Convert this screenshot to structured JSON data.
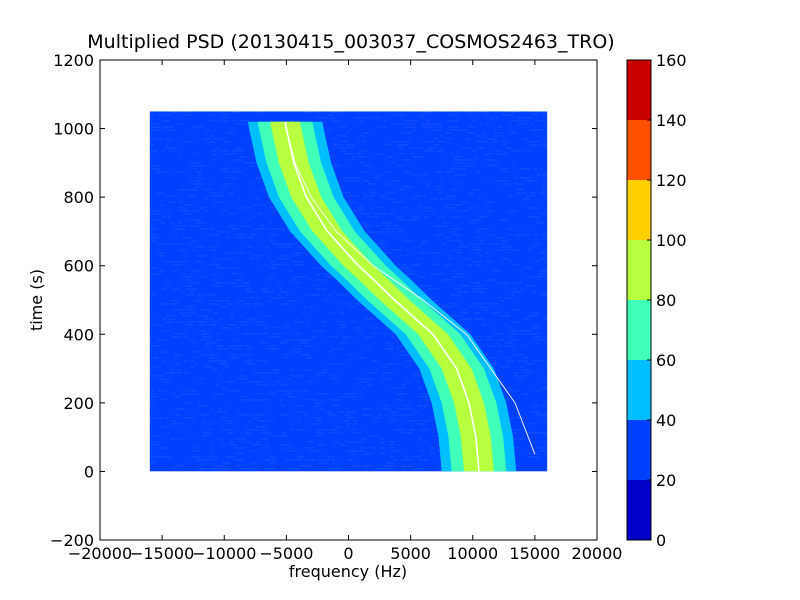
{
  "chart_data": {
    "type": "heatmap",
    "title": "Multiplied PSD (20130415_003037_COSMOS2463_TRO)",
    "xlabel": "frequency (Hz)",
    "ylabel": "time (s)",
    "xlim": [
      -20000,
      20000
    ],
    "ylim": [
      -200,
      1200
    ],
    "x_ticks": [
      "−20000",
      "−15000",
      "−10000",
      "−5000",
      "0",
      "5000",
      "10000",
      "15000",
      "20000"
    ],
    "y_ticks": [
      "−200",
      "0",
      "200",
      "400",
      "600",
      "800",
      "1000",
      "1200"
    ],
    "data_extent": {
      "x": [
        -16000,
        16000
      ],
      "y": [
        0,
        1050
      ]
    },
    "grid": false,
    "colorbar": {
      "range": [
        0,
        160
      ],
      "levels": [
        0,
        20,
        40,
        60,
        80,
        100,
        120,
        140,
        160
      ],
      "tick_labels": [
        "0",
        "20",
        "40",
        "60",
        "80",
        "100",
        "120",
        "140",
        "160"
      ],
      "colors": [
        "#0000c8",
        "#0040ff",
        "#00bfff",
        "#40ffb8",
        "#b8ff40",
        "#ffd000",
        "#ff5000",
        "#c80000"
      ]
    },
    "background_level": "20-40",
    "signal_track": {
      "description_values": "Doppler S-curve: frequency vs time",
      "points": [
        {
          "t": 0,
          "f": 10500
        },
        {
          "t": 100,
          "f": 10250
        },
        {
          "t": 200,
          "f": 9700
        },
        {
          "t": 300,
          "f": 8700
        },
        {
          "t": 400,
          "f": 6800
        },
        {
          "t": 500,
          "f": 3700
        },
        {
          "t": 560,
          "f": 2000
        },
        {
          "t": 600,
          "f": 800
        },
        {
          "t": 700,
          "f": -1700
        },
        {
          "t": 800,
          "f": -3400
        },
        {
          "t": 900,
          "f": -4400
        },
        {
          "t": 1000,
          "f": -5000
        },
        {
          "t": 1020,
          "f": -5100
        }
      ],
      "bands": [
        {
          "level": "40-60",
          "half_width_hz": 3000
        },
        {
          "level": "60-80",
          "half_width_hz": 2200
        },
        {
          "level": "80-100",
          "half_width_hz": 1200
        }
      ]
    },
    "secondary_track": {
      "points": [
        {
          "t": 50,
          "f": 15000
        },
        {
          "t": 200,
          "f": 13400
        },
        {
          "t": 400,
          "f": 9500
        },
        {
          "t": 500,
          "f": 6000
        },
        {
          "t": 600,
          "f": 2000
        },
        {
          "t": 700,
          "f": -1000
        },
        {
          "t": 800,
          "f": -3000
        },
        {
          "t": 900,
          "f": -4300
        },
        {
          "t": 1000,
          "f": -5000
        }
      ]
    }
  }
}
